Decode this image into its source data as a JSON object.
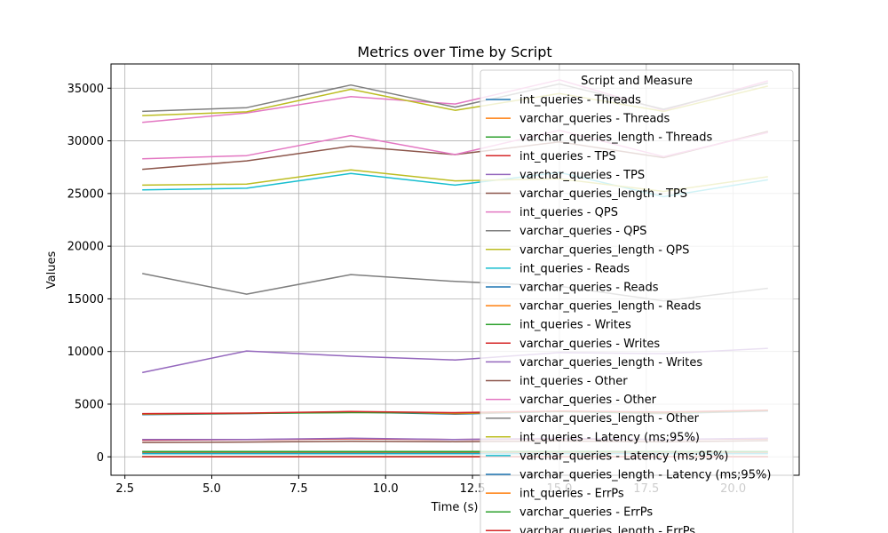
{
  "chart_data": {
    "type": "line",
    "title": "Metrics over Time by Script",
    "xlabel": "Time (s)",
    "ylabel": "Values",
    "xlim": [
      2.1,
      21.9
    ],
    "ylim": [
      -1750,
      37300
    ],
    "xticks": [
      2.5,
      5.0,
      7.5,
      10.0,
      12.5,
      15.0,
      17.5,
      20.0
    ],
    "xtick_labels": [
      "2.5",
      "5.0",
      "7.5",
      "10.0",
      "12.5",
      "15.0",
      "17.5",
      "20.0"
    ],
    "yticks": [
      0,
      5000,
      10000,
      15000,
      20000,
      25000,
      30000,
      35000
    ],
    "ytick_labels": [
      "0",
      "5000",
      "10000",
      "15000",
      "20000",
      "25000",
      "30000",
      "35000"
    ],
    "grid": true,
    "legend_title": "Script and Measure",
    "legend_position": "upper-right",
    "x": [
      3,
      6,
      9,
      12,
      15,
      18,
      21
    ],
    "series": [
      {
        "name": "int_queries - Threads",
        "color": "#1f77b4",
        "values": [
          16,
          16,
          16,
          16,
          16,
          16,
          16
        ]
      },
      {
        "name": "varchar_queries - Threads",
        "color": "#ff7f0e",
        "values": [
          16,
          16,
          16,
          16,
          16,
          16,
          16
        ]
      },
      {
        "name": "varchar_queries_length - Threads",
        "color": "#2ca02c",
        "values": [
          16,
          16,
          16,
          16,
          16,
          16,
          16
        ]
      },
      {
        "name": "int_queries - TPS",
        "color": "#d62728",
        "values": [
          1585,
          1630,
          1710,
          1640,
          1700,
          1650,
          1710
        ]
      },
      {
        "name": "varchar_queries - TPS",
        "color": "#9467bd",
        "values": [
          1640,
          1650,
          1765,
          1640,
          1760,
          1650,
          1770
        ]
      },
      {
        "name": "varchar_queries_length - TPS",
        "color": "#8c564b",
        "values": [
          1365,
          1405,
          1470,
          1435,
          1500,
          1425,
          1540
        ]
      },
      {
        "name": "int_queries - QPS",
        "color": "#e377c2",
        "values": [
          31750,
          32650,
          34200,
          33500,
          35800,
          32900,
          35700
        ]
      },
      {
        "name": "varchar_queries - QPS",
        "color": "#7f7f7f",
        "values": [
          32800,
          33150,
          35300,
          33200,
          35400,
          33000,
          35500
        ]
      },
      {
        "name": "varchar_queries_length - QPS",
        "color": "#bcbd22",
        "values": [
          32400,
          32750,
          34900,
          32900,
          34500,
          32800,
          35200
        ]
      },
      {
        "name": "int_queries - Reads",
        "color": "#17becf",
        "values": [
          25350,
          25500,
          26900,
          25800,
          27000,
          24700,
          26300
        ]
      },
      {
        "name": "varchar_queries - Reads",
        "color": "#1f77b4",
        "values": [
          4000,
          4100,
          4250,
          4050,
          4300,
          4100,
          4350
        ]
      },
      {
        "name": "varchar_queries_length - Reads",
        "color": "#ff7f0e",
        "values": [
          4050,
          4120,
          4280,
          4100,
          4320,
          4150,
          4380
        ]
      },
      {
        "name": "int_queries - Writes",
        "color": "#2ca02c",
        "values": [
          4080,
          4130,
          4200,
          4180,
          4300,
          4200,
          4400
        ]
      },
      {
        "name": "varchar_queries - Writes",
        "color": "#d62728",
        "values": [
          4100,
          4150,
          4300,
          4200,
          4350,
          4250,
          4420
        ]
      },
      {
        "name": "varchar_queries_length - Writes",
        "color": "#9467bd",
        "values": [
          8000,
          10050,
          9550,
          9200,
          9900,
          9800,
          10300
        ]
      },
      {
        "name": "int_queries - Other",
        "color": "#8c564b",
        "values": [
          27300,
          28100,
          29500,
          28700,
          29900,
          28400,
          30900
        ]
      },
      {
        "name": "varchar_queries - Other",
        "color": "#e377c2",
        "values": [
          28300,
          28600,
          30500,
          28700,
          31000,
          28500,
          30800
        ]
      },
      {
        "name": "varchar_queries_length - Other",
        "color": "#7f7f7f",
        "values": [
          17400,
          15450,
          17300,
          16650,
          16200,
          14800,
          16000
        ]
      },
      {
        "name": "int_queries - Latency (ms;95%)",
        "color": "#bcbd22",
        "values": [
          25800,
          25900,
          27250,
          26200,
          26400,
          25200,
          26600
        ]
      },
      {
        "name": "varchar_queries - Latency (ms;95%)",
        "color": "#17becf",
        "values": [
          300,
          300,
          300,
          300,
          300,
          300,
          300
        ]
      },
      {
        "name": "varchar_queries_length - Latency (ms;95%)",
        "color": "#1f77b4",
        "values": [
          400,
          400,
          400,
          400,
          400,
          400,
          400
        ]
      },
      {
        "name": "int_queries - ErrPs",
        "color": "#ff7f0e",
        "values": [
          450,
          450,
          450,
          450,
          450,
          450,
          450
        ]
      },
      {
        "name": "varchar_queries - ErrPs",
        "color": "#2ca02c",
        "values": [
          500,
          500,
          500,
          500,
          500,
          500,
          500
        ]
      },
      {
        "name": "varchar_queries_length - ErrPs",
        "color": "#d62728",
        "values": [
          0,
          0,
          0,
          0,
          0,
          0,
          0
        ]
      }
    ]
  }
}
